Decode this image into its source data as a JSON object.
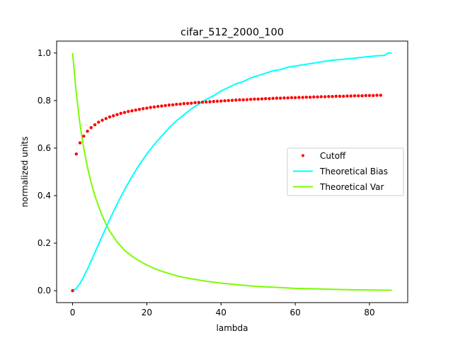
{
  "chart_data": {
    "type": "line",
    "title": "cifar_512_2000_100",
    "xlabel": "lambda",
    "ylabel": "normalized units",
    "xlim": [
      -4.3,
      90.3
    ],
    "ylim": [
      -0.05,
      1.05
    ],
    "xticks": [
      0,
      20,
      40,
      60,
      80
    ],
    "yticks": [
      0.0,
      0.2,
      0.4,
      0.6,
      0.8,
      1.0
    ],
    "xtick_labels": [
      "0",
      "20",
      "40",
      "60",
      "80"
    ],
    "ytick_labels": [
      "0.0",
      "0.2",
      "0.4",
      "0.6",
      "0.8",
      "1.0"
    ],
    "grid": false,
    "legend_position": "center-right",
    "series": [
      {
        "name": "Cutoff",
        "type": "scatter",
        "color": "#ff0000",
        "x": [
          0,
          1,
          2,
          3,
          4,
          5,
          6,
          7,
          8,
          9,
          10,
          11,
          12,
          13,
          14,
          15,
          16,
          17,
          18,
          19,
          20,
          21,
          22,
          23,
          24,
          25,
          26,
          27,
          28,
          29,
          30,
          31,
          32,
          33,
          34,
          35,
          36,
          37,
          38,
          39,
          40,
          41,
          42,
          43,
          44,
          45,
          46,
          47,
          48,
          49,
          50,
          51,
          52,
          53,
          54,
          55,
          56,
          57,
          58,
          59,
          60,
          61,
          62,
          63,
          64,
          65,
          66,
          67,
          68,
          69,
          70,
          71,
          72,
          73,
          74,
          75,
          76,
          77,
          78,
          79,
          80,
          81,
          82,
          83
        ],
        "y": [
          0.0,
          0.575,
          0.622,
          0.65,
          0.671,
          0.686,
          0.698,
          0.709,
          0.717,
          0.724,
          0.731,
          0.736,
          0.741,
          0.746,
          0.75,
          0.754,
          0.757,
          0.76,
          0.763,
          0.766,
          0.768,
          0.771,
          0.773,
          0.775,
          0.777,
          0.779,
          0.781,
          0.782,
          0.784,
          0.785,
          0.787,
          0.788,
          0.789,
          0.791,
          0.792,
          0.793,
          0.794,
          0.795,
          0.796,
          0.797,
          0.798,
          0.799,
          0.8,
          0.801,
          0.802,
          0.803,
          0.803,
          0.804,
          0.805,
          0.806,
          0.806,
          0.807,
          0.808,
          0.808,
          0.809,
          0.81,
          0.81,
          0.811,
          0.811,
          0.812,
          0.812,
          0.813,
          0.813,
          0.814,
          0.814,
          0.815,
          0.815,
          0.816,
          0.816,
          0.817,
          0.817,
          0.818,
          0.818,
          0.818,
          0.819,
          0.819,
          0.82,
          0.82,
          0.82,
          0.821,
          0.821,
          0.821,
          0.822,
          0.822
        ]
      },
      {
        "name": "Theoretical Bias",
        "type": "line",
        "color": "#00ffff",
        "x": [
          0,
          1,
          2,
          3,
          4,
          5,
          6,
          7,
          8,
          9,
          10,
          12,
          14,
          16,
          18,
          20,
          22,
          24,
          26,
          28,
          30,
          32,
          34,
          36,
          38,
          40,
          42,
          44,
          46,
          48,
          50,
          52,
          54,
          56,
          58,
          60,
          62,
          64,
          66,
          68,
          70,
          72,
          74,
          76,
          78,
          80,
          82,
          84,
          85,
          86
        ],
        "y": [
          0.0,
          0.01,
          0.03,
          0.06,
          0.09,
          0.125,
          0.16,
          0.195,
          0.23,
          0.265,
          0.3,
          0.365,
          0.425,
          0.48,
          0.53,
          0.575,
          0.615,
          0.65,
          0.685,
          0.715,
          0.74,
          0.765,
          0.785,
          0.805,
          0.82,
          0.84,
          0.855,
          0.87,
          0.88,
          0.895,
          0.905,
          0.915,
          0.925,
          0.93,
          0.94,
          0.945,
          0.95,
          0.955,
          0.96,
          0.965,
          0.97,
          0.972,
          0.975,
          0.978,
          0.982,
          0.985,
          0.988,
          0.99,
          1.0,
          1.0
        ]
      },
      {
        "name": "Theoretical Var",
        "type": "line",
        "color": "#7cfc00",
        "x": [
          0,
          1,
          2,
          3,
          4,
          5,
          6,
          7,
          8,
          9,
          10,
          12,
          14,
          16,
          18,
          20,
          22,
          24,
          26,
          28,
          30,
          32,
          34,
          36,
          38,
          40,
          42,
          44,
          46,
          48,
          50,
          55,
          60,
          65,
          70,
          75,
          80,
          86
        ],
        "y": [
          1.0,
          0.83,
          0.7,
          0.6,
          0.52,
          0.455,
          0.4,
          0.355,
          0.315,
          0.28,
          0.25,
          0.205,
          0.17,
          0.145,
          0.125,
          0.108,
          0.094,
          0.082,
          0.072,
          0.063,
          0.056,
          0.05,
          0.045,
          0.04,
          0.036,
          0.032,
          0.029,
          0.026,
          0.023,
          0.02,
          0.018,
          0.014,
          0.01,
          0.008,
          0.006,
          0.004,
          0.003,
          0.002
        ]
      }
    ]
  }
}
